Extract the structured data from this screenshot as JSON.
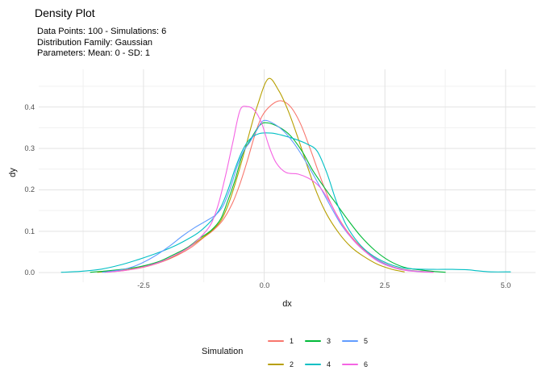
{
  "title": "Density Plot",
  "subtitle": {
    "lines": [
      "Data Points: 100 - Simulations: 6",
      "Distribution Family: Gaussian",
      "Parameters: Mean: 0 - SD: 1"
    ]
  },
  "chart_data": {
    "type": "line",
    "title": "Density Plot",
    "xlabel": "dx",
    "ylabel": "dy",
    "xlim": [
      -4.67,
      5.62
    ],
    "ylim": [
      -0.023,
      0.491
    ],
    "grid": true,
    "legend_title": "Simulation",
    "legend_position": "bottom",
    "x_ticks": [
      -2.5,
      0,
      2.5,
      5
    ],
    "x_tick_labels": [
      "-2.5",
      "0.0",
      "2.5",
      "5.0"
    ],
    "x_minor_ticks": [
      -3.75,
      -1.25,
      1.25,
      3.75
    ],
    "y_ticks": [
      0,
      0.1,
      0.2,
      0.3,
      0.4
    ],
    "y_tick_labels": [
      "0.0",
      "0.1",
      "0.2",
      "0.3",
      "0.4"
    ],
    "y_minor_ticks": [
      0.05,
      0.15,
      0.25,
      0.35,
      0.45
    ],
    "series": [
      {
        "name": "1",
        "color": "#F8766D",
        "points": [
          [
            -3.3,
            0.001
          ],
          [
            -2.9,
            0.005
          ],
          [
            -2.5,
            0.013
          ],
          [
            -2.1,
            0.027
          ],
          [
            -1.8,
            0.042
          ],
          [
            -1.5,
            0.062
          ],
          [
            -1.25,
            0.085
          ],
          [
            -1.05,
            0.103
          ],
          [
            -0.85,
            0.128
          ],
          [
            -0.65,
            0.17
          ],
          [
            -0.5,
            0.215
          ],
          [
            -0.35,
            0.27
          ],
          [
            -0.2,
            0.33
          ],
          [
            -0.05,
            0.377
          ],
          [
            0.15,
            0.405
          ],
          [
            0.35,
            0.415
          ],
          [
            0.55,
            0.4
          ],
          [
            0.75,
            0.36
          ],
          [
            0.95,
            0.3
          ],
          [
            1.15,
            0.235
          ],
          [
            1.35,
            0.175
          ],
          [
            1.55,
            0.13
          ],
          [
            1.8,
            0.088
          ],
          [
            2.1,
            0.052
          ],
          [
            2.4,
            0.028
          ],
          [
            2.7,
            0.013
          ],
          [
            3.0,
            0.006
          ],
          [
            3.25,
            0.003
          ],
          [
            3.5,
            0.001
          ]
        ]
      },
      {
        "name": "2",
        "color": "#B79F00",
        "points": [
          [
            -3.45,
            0.001
          ],
          [
            -3.0,
            0.005
          ],
          [
            -2.6,
            0.012
          ],
          [
            -2.2,
            0.024
          ],
          [
            -1.9,
            0.038
          ],
          [
            -1.6,
            0.058
          ],
          [
            -1.35,
            0.078
          ],
          [
            -1.1,
            0.1
          ],
          [
            -0.9,
            0.125
          ],
          [
            -0.75,
            0.163
          ],
          [
            -0.6,
            0.215
          ],
          [
            -0.45,
            0.275
          ],
          [
            -0.3,
            0.34
          ],
          [
            -0.15,
            0.4
          ],
          [
            0.08,
            0.468
          ],
          [
            0.3,
            0.44
          ],
          [
            0.5,
            0.39
          ],
          [
            0.7,
            0.325
          ],
          [
            0.9,
            0.255
          ],
          [
            1.1,
            0.19
          ],
          [
            1.3,
            0.14
          ],
          [
            1.55,
            0.095
          ],
          [
            1.8,
            0.062
          ],
          [
            2.05,
            0.04
          ],
          [
            2.35,
            0.02
          ],
          [
            2.65,
            0.008
          ],
          [
            2.9,
            0.002
          ]
        ]
      },
      {
        "name": "3",
        "color": "#00BA38",
        "points": [
          [
            -3.6,
            0.001
          ],
          [
            -3.1,
            0.006
          ],
          [
            -2.6,
            0.014
          ],
          [
            -2.2,
            0.026
          ],
          [
            -1.9,
            0.042
          ],
          [
            -1.6,
            0.06
          ],
          [
            -1.35,
            0.082
          ],
          [
            -1.1,
            0.102
          ],
          [
            -0.9,
            0.13
          ],
          [
            -0.75,
            0.175
          ],
          [
            -0.6,
            0.225
          ],
          [
            -0.45,
            0.285
          ],
          [
            -0.3,
            0.318
          ],
          [
            -0.1,
            0.355
          ],
          [
            0.05,
            0.362
          ],
          [
            0.3,
            0.352
          ],
          [
            0.55,
            0.33
          ],
          [
            0.8,
            0.29
          ],
          [
            1.0,
            0.248
          ],
          [
            1.25,
            0.205
          ],
          [
            1.5,
            0.165
          ],
          [
            1.75,
            0.125
          ],
          [
            2.0,
            0.088
          ],
          [
            2.3,
            0.053
          ],
          [
            2.6,
            0.028
          ],
          [
            2.9,
            0.013
          ],
          [
            3.2,
            0.007
          ],
          [
            3.5,
            0.003
          ],
          [
            3.75,
            0.001
          ]
        ]
      },
      {
        "name": "4",
        "color": "#00BFC4",
        "points": [
          [
            -4.2,
            0.001
          ],
          [
            -3.8,
            0.003
          ],
          [
            -3.4,
            0.008
          ],
          [
            -3.0,
            0.018
          ],
          [
            -2.6,
            0.032
          ],
          [
            -2.2,
            0.048
          ],
          [
            -1.9,
            0.062
          ],
          [
            -1.6,
            0.08
          ],
          [
            -1.35,
            0.098
          ],
          [
            -1.1,
            0.125
          ],
          [
            -0.9,
            0.158
          ],
          [
            -0.75,
            0.2
          ],
          [
            -0.6,
            0.252
          ],
          [
            -0.45,
            0.295
          ],
          [
            -0.3,
            0.322
          ],
          [
            -0.1,
            0.336
          ],
          [
            0.15,
            0.337
          ],
          [
            0.4,
            0.331
          ],
          [
            0.65,
            0.322
          ],
          [
            0.9,
            0.31
          ],
          [
            1.1,
            0.293
          ],
          [
            1.3,
            0.24
          ],
          [
            1.5,
            0.17
          ],
          [
            1.7,
            0.115
          ],
          [
            1.95,
            0.072
          ],
          [
            2.2,
            0.045
          ],
          [
            2.5,
            0.025
          ],
          [
            2.8,
            0.013
          ],
          [
            3.1,
            0.009
          ],
          [
            3.5,
            0.008
          ],
          [
            3.9,
            0.008
          ],
          [
            4.2,
            0.007
          ],
          [
            4.45,
            0.004
          ],
          [
            4.7,
            0.002
          ],
          [
            5.1,
            0.002
          ]
        ]
      },
      {
        "name": "5",
        "color": "#619CFF",
        "points": [
          [
            -3.35,
            0.001
          ],
          [
            -3.0,
            0.006
          ],
          [
            -2.7,
            0.015
          ],
          [
            -2.45,
            0.028
          ],
          [
            -2.2,
            0.045
          ],
          [
            -1.95,
            0.065
          ],
          [
            -1.7,
            0.088
          ],
          [
            -1.45,
            0.108
          ],
          [
            -1.2,
            0.125
          ],
          [
            -1.0,
            0.14
          ],
          [
            -0.85,
            0.162
          ],
          [
            -0.7,
            0.205
          ],
          [
            -0.55,
            0.26
          ],
          [
            -0.42,
            0.295
          ],
          [
            -0.3,
            0.315
          ],
          [
            -0.15,
            0.345
          ],
          [
            -0.02,
            0.367
          ],
          [
            0.18,
            0.361
          ],
          [
            0.4,
            0.342
          ],
          [
            0.6,
            0.315
          ],
          [
            0.8,
            0.28
          ],
          [
            1.0,
            0.24
          ],
          [
            1.2,
            0.198
          ],
          [
            1.4,
            0.155
          ],
          [
            1.6,
            0.115
          ],
          [
            1.85,
            0.078
          ],
          [
            2.1,
            0.05
          ],
          [
            2.4,
            0.027
          ],
          [
            2.7,
            0.012
          ],
          [
            3.0,
            0.005
          ],
          [
            3.45,
            0.001
          ]
        ]
      },
      {
        "name": "6",
        "color": "#F564E3",
        "points": [
          [
            -3.25,
            0.001
          ],
          [
            -2.85,
            0.006
          ],
          [
            -2.5,
            0.014
          ],
          [
            -2.15,
            0.026
          ],
          [
            -1.85,
            0.042
          ],
          [
            -1.55,
            0.062
          ],
          [
            -1.3,
            0.088
          ],
          [
            -1.1,
            0.118
          ],
          [
            -0.95,
            0.165
          ],
          [
            -0.8,
            0.235
          ],
          [
            -0.65,
            0.315
          ],
          [
            -0.5,
            0.392
          ],
          [
            -0.35,
            0.401
          ],
          [
            -0.2,
            0.392
          ],
          [
            -0.05,
            0.36
          ],
          [
            0.1,
            0.305
          ],
          [
            0.25,
            0.265
          ],
          [
            0.45,
            0.242
          ],
          [
            0.7,
            0.238
          ],
          [
            0.95,
            0.226
          ],
          [
            1.15,
            0.207
          ],
          [
            1.35,
            0.172
          ],
          [
            1.55,
            0.128
          ],
          [
            1.8,
            0.085
          ],
          [
            2.05,
            0.055
          ],
          [
            2.35,
            0.028
          ],
          [
            2.65,
            0.013
          ],
          [
            2.95,
            0.005
          ],
          [
            3.25,
            0.002
          ],
          [
            3.5,
            0.001
          ]
        ]
      }
    ]
  }
}
